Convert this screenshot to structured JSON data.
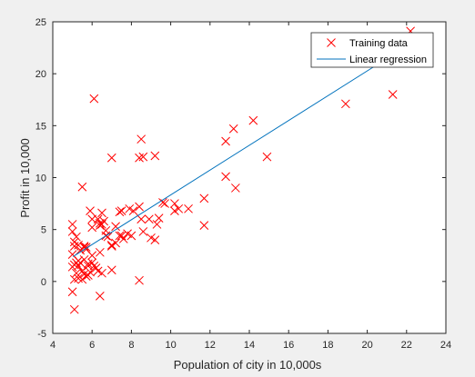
{
  "chart_data": {
    "type": "scatter",
    "title": "",
    "xlabel": "Population of city in 10,000s",
    "ylabel": "Profit in 10,000",
    "xlim": [
      4,
      24
    ],
    "ylim": [
      -5,
      25
    ],
    "xticks": [
      4,
      6,
      8,
      10,
      12,
      14,
      16,
      18,
      20,
      22,
      24
    ],
    "yticks": [
      -5,
      0,
      5,
      10,
      15,
      20,
      25
    ],
    "grid": false,
    "legend_position": "top-right",
    "series": [
      {
        "name": "Training data",
        "kind": "scatter",
        "marker": "x",
        "color": "#ff0000",
        "points": [
          [
            6.1,
            17.6
          ],
          [
            5.5,
            9.1
          ],
          [
            8.5,
            13.7
          ],
          [
            7.0,
            11.9
          ],
          [
            5.9,
            6.8
          ],
          [
            8.4,
            11.9
          ],
          [
            5.6,
            3.3
          ],
          [
            8.6,
            12.0
          ],
          [
            6.5,
            6.6
          ],
          [
            5.1,
            3.8
          ],
          [
            5.7,
            3.3
          ],
          [
            14.2,
            15.5
          ],
          [
            5.7,
            3.1
          ],
          [
            8.4,
            7.2
          ],
          [
            5.6,
            0.7
          ],
          [
            5.3,
            3.5
          ],
          [
            6.4,
            5.4
          ],
          [
            5.6,
            3.4
          ],
          [
            6.0,
            6.0
          ],
          [
            7.5,
            4.4
          ],
          [
            12.8,
            13.5
          ],
          [
            5.5,
            0.2
          ],
          [
            8.6,
            4.8
          ],
          [
            10.4,
            7.0
          ],
          [
            6.0,
            1.8
          ],
          [
            6.3,
            1.0
          ],
          [
            5.0,
            5.5
          ],
          [
            6.4,
            5.6
          ],
          [
            5.1,
            3.4
          ],
          [
            5.3,
            0.3
          ],
          [
            7.2,
            5.3
          ],
          [
            7.5,
            6.8
          ],
          [
            5.1,
            1.6
          ],
          [
            5.8,
            0.6
          ],
          [
            6.4,
            2.8
          ],
          [
            5.2,
            1.8
          ],
          [
            5.0,
            4.8
          ],
          [
            9.2,
            4.0
          ],
          [
            7.0,
            1.1
          ],
          [
            5.1,
            0.2
          ],
          [
            20.3,
            21.8
          ],
          [
            5.0,
            -1.0
          ],
          [
            6.4,
            -1.4
          ],
          [
            5.1,
            -2.7
          ],
          [
            8.4,
            0.1
          ],
          [
            5.5,
            1.0
          ],
          [
            5.6,
            2.1
          ],
          [
            5.3,
            1.5
          ],
          [
            6.2,
            1.3
          ],
          [
            5.2,
            0.8
          ],
          [
            5.0,
            1.4
          ],
          [
            6.5,
            0.8
          ],
          [
            7.0,
            3.5
          ],
          [
            5.0,
            2.6
          ],
          [
            6.3,
            6.0
          ],
          [
            6.8,
            4.3
          ],
          [
            7.4,
            4.4
          ],
          [
            7.8,
            4.6
          ],
          [
            9.0,
            4.2
          ],
          [
            10.2,
            7.5
          ],
          [
            11.7,
            5.4
          ],
          [
            7.6,
            4.1
          ],
          [
            6.1,
            1.5
          ],
          [
            8.1,
            6.8
          ],
          [
            13.3,
            9.0
          ],
          [
            21.3,
            18.0
          ],
          [
            6.7,
            4.4
          ],
          [
            5.4,
            3.0
          ],
          [
            8.5,
            6.0
          ],
          [
            5.7,
            0.5
          ],
          [
            6.5,
            5.5
          ],
          [
            7.4,
            6.7
          ],
          [
            8.9,
            6.0
          ],
          [
            9.4,
            6.1
          ],
          [
            9.6,
            7.6
          ],
          [
            10.2,
            6.8
          ],
          [
            11.7,
            8.0
          ],
          [
            7.9,
            7.0
          ],
          [
            9.3,
            5.5
          ],
          [
            6.7,
            4.9
          ],
          [
            6.0,
            2.5
          ],
          [
            5.8,
            1.7
          ],
          [
            5.2,
            4.3
          ],
          [
            12.8,
            10.1
          ],
          [
            13.2,
            14.7
          ],
          [
            10.9,
            7.0
          ],
          [
            9.7,
            7.5
          ],
          [
            18.9,
            17.1
          ],
          [
            14.9,
            12.0
          ],
          [
            22.2,
            24.1
          ],
          [
            9.2,
            12.1
          ],
          [
            6.0,
            5.2
          ],
          [
            5.4,
            1.8
          ],
          [
            5.8,
            1.5
          ],
          [
            8.0,
            4.4
          ],
          [
            6.6,
            5.8
          ],
          [
            7.2,
            3.7
          ],
          [
            5.9,
            0.9
          ],
          [
            5.3,
            2.0
          ],
          [
            7.0,
            3.4
          ]
        ]
      },
      {
        "name": "Linear regression",
        "kind": "line",
        "color": "#0072bd",
        "x": [
          5.03,
          22.2
        ],
        "y": [
          2.4,
          22.9
        ]
      }
    ]
  }
}
